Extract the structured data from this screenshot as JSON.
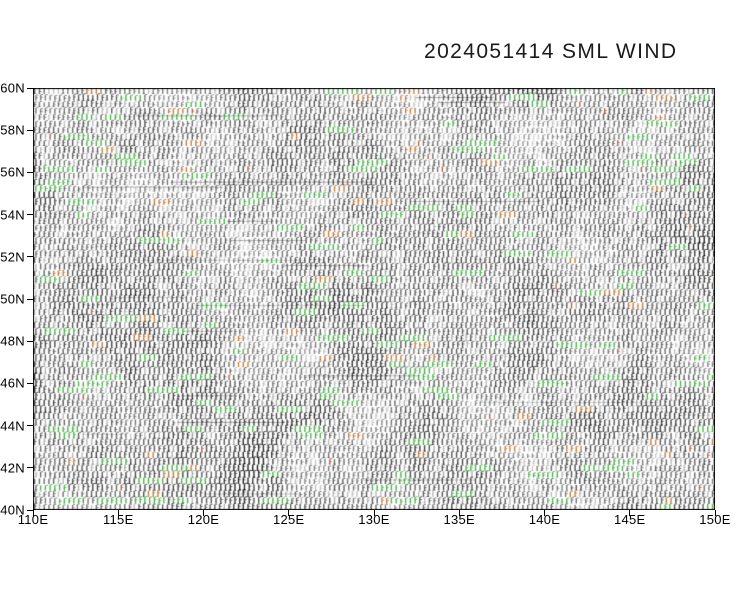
{
  "chart_data": {
    "type": "other",
    "subtype": "wind_barb_field_map",
    "title": "2024051414 SML WIND",
    "xlabel": "",
    "ylabel": "",
    "x_tick_labels": [
      "110E",
      "115E",
      "120E",
      "125E",
      "130E",
      "135E",
      "140E",
      "145E",
      "150E"
    ],
    "y_tick_labels": [
      "60N",
      "58N",
      "56N",
      "54N",
      "52N",
      "50N",
      "48N",
      "46N",
      "44N",
      "42N",
      "40N"
    ],
    "x_range_deg_east": [
      110,
      150
    ],
    "y_range_deg_north": [
      40,
      60
    ],
    "grid": false,
    "legend": "none",
    "values_readable": false,
    "field": {
      "description": "dense overlapping wind barbs covering entire map area",
      "background": "#ffffff",
      "barb_color": "#000000",
      "accent_green": "#35a035",
      "accent_orange": "#b06a28",
      "accent_red": "#9c4a32",
      "green_fraction": 0.016,
      "orange_fraction": 0.006,
      "red_fraction": 0.003,
      "col_spacing_px": 4.74,
      "row_spacing_px": 6.5,
      "seed": 20240514
    }
  }
}
